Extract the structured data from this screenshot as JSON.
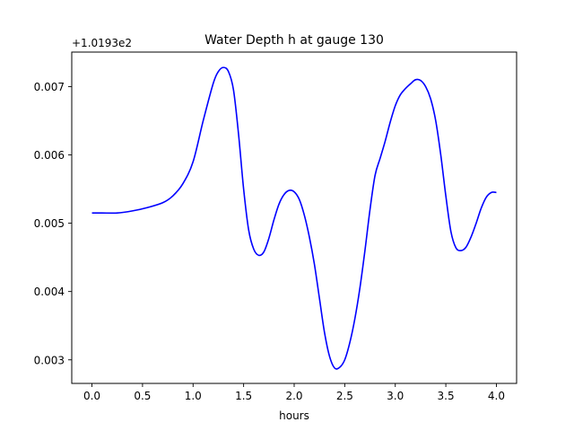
{
  "chart_data": {
    "type": "line",
    "title": "Water Depth h at gauge 130",
    "xlabel": "hours",
    "ylabel": "",
    "offset_label": "+1.0193e2",
    "xlim": [
      -0.2,
      4.2
    ],
    "ylim": [
      0.002655,
      0.007505
    ],
    "xticks": [
      0.0,
      0.5,
      1.0,
      1.5,
      2.0,
      2.5,
      3.0,
      3.5,
      4.0
    ],
    "xtick_labels": [
      "0.0",
      "0.5",
      "1.0",
      "1.5",
      "2.0",
      "2.5",
      "3.0",
      "3.5",
      "4.0"
    ],
    "yticks": [
      0.003,
      0.004,
      0.005,
      0.006,
      0.007
    ],
    "ytick_labels": [
      "0.003",
      "0.004",
      "0.005",
      "0.006",
      "0.007"
    ],
    "grid": false,
    "series": [
      {
        "color": "#0000ff",
        "x": [
          0.0,
          0.1,
          0.25,
          0.4,
          0.55,
          0.7,
          0.8,
          0.9,
          1.0,
          1.1,
          1.2,
          1.25,
          1.3,
          1.35,
          1.4,
          1.45,
          1.5,
          1.55,
          1.6,
          1.65,
          1.7,
          1.75,
          1.8,
          1.85,
          1.9,
          1.95,
          2.0,
          2.05,
          2.1,
          2.15,
          2.2,
          2.25,
          2.3,
          2.35,
          2.4,
          2.45,
          2.5,
          2.55,
          2.6,
          2.65,
          2.7,
          2.75,
          2.8,
          2.85,
          2.9,
          2.95,
          3.0,
          3.05,
          3.1,
          3.15,
          3.2,
          3.25,
          3.3,
          3.35,
          3.4,
          3.45,
          3.5,
          3.55,
          3.6,
          3.65,
          3.7,
          3.75,
          3.8,
          3.85,
          3.9,
          3.95,
          4.0
        ],
        "y": [
          0.00515,
          0.00515,
          0.00515,
          0.00518,
          0.00523,
          0.0053,
          0.0054,
          0.00558,
          0.0059,
          0.0065,
          0.00705,
          0.00722,
          0.00728,
          0.00722,
          0.00695,
          0.0063,
          0.0055,
          0.0049,
          0.00462,
          0.00453,
          0.00458,
          0.00478,
          0.00505,
          0.00528,
          0.00542,
          0.00548,
          0.00546,
          0.00535,
          0.00512,
          0.0048,
          0.0044,
          0.0039,
          0.0034,
          0.00305,
          0.00288,
          0.00289,
          0.003,
          0.00325,
          0.0036,
          0.00405,
          0.0046,
          0.0052,
          0.0057,
          0.00595,
          0.0062,
          0.00648,
          0.00672,
          0.00688,
          0.00697,
          0.00704,
          0.0071,
          0.00709,
          0.007,
          0.00682,
          0.0065,
          0.006,
          0.0054,
          0.00488,
          0.00464,
          0.0046,
          0.00465,
          0.0048,
          0.005,
          0.00522,
          0.00538,
          0.00545,
          0.00545
        ]
      }
    ]
  }
}
